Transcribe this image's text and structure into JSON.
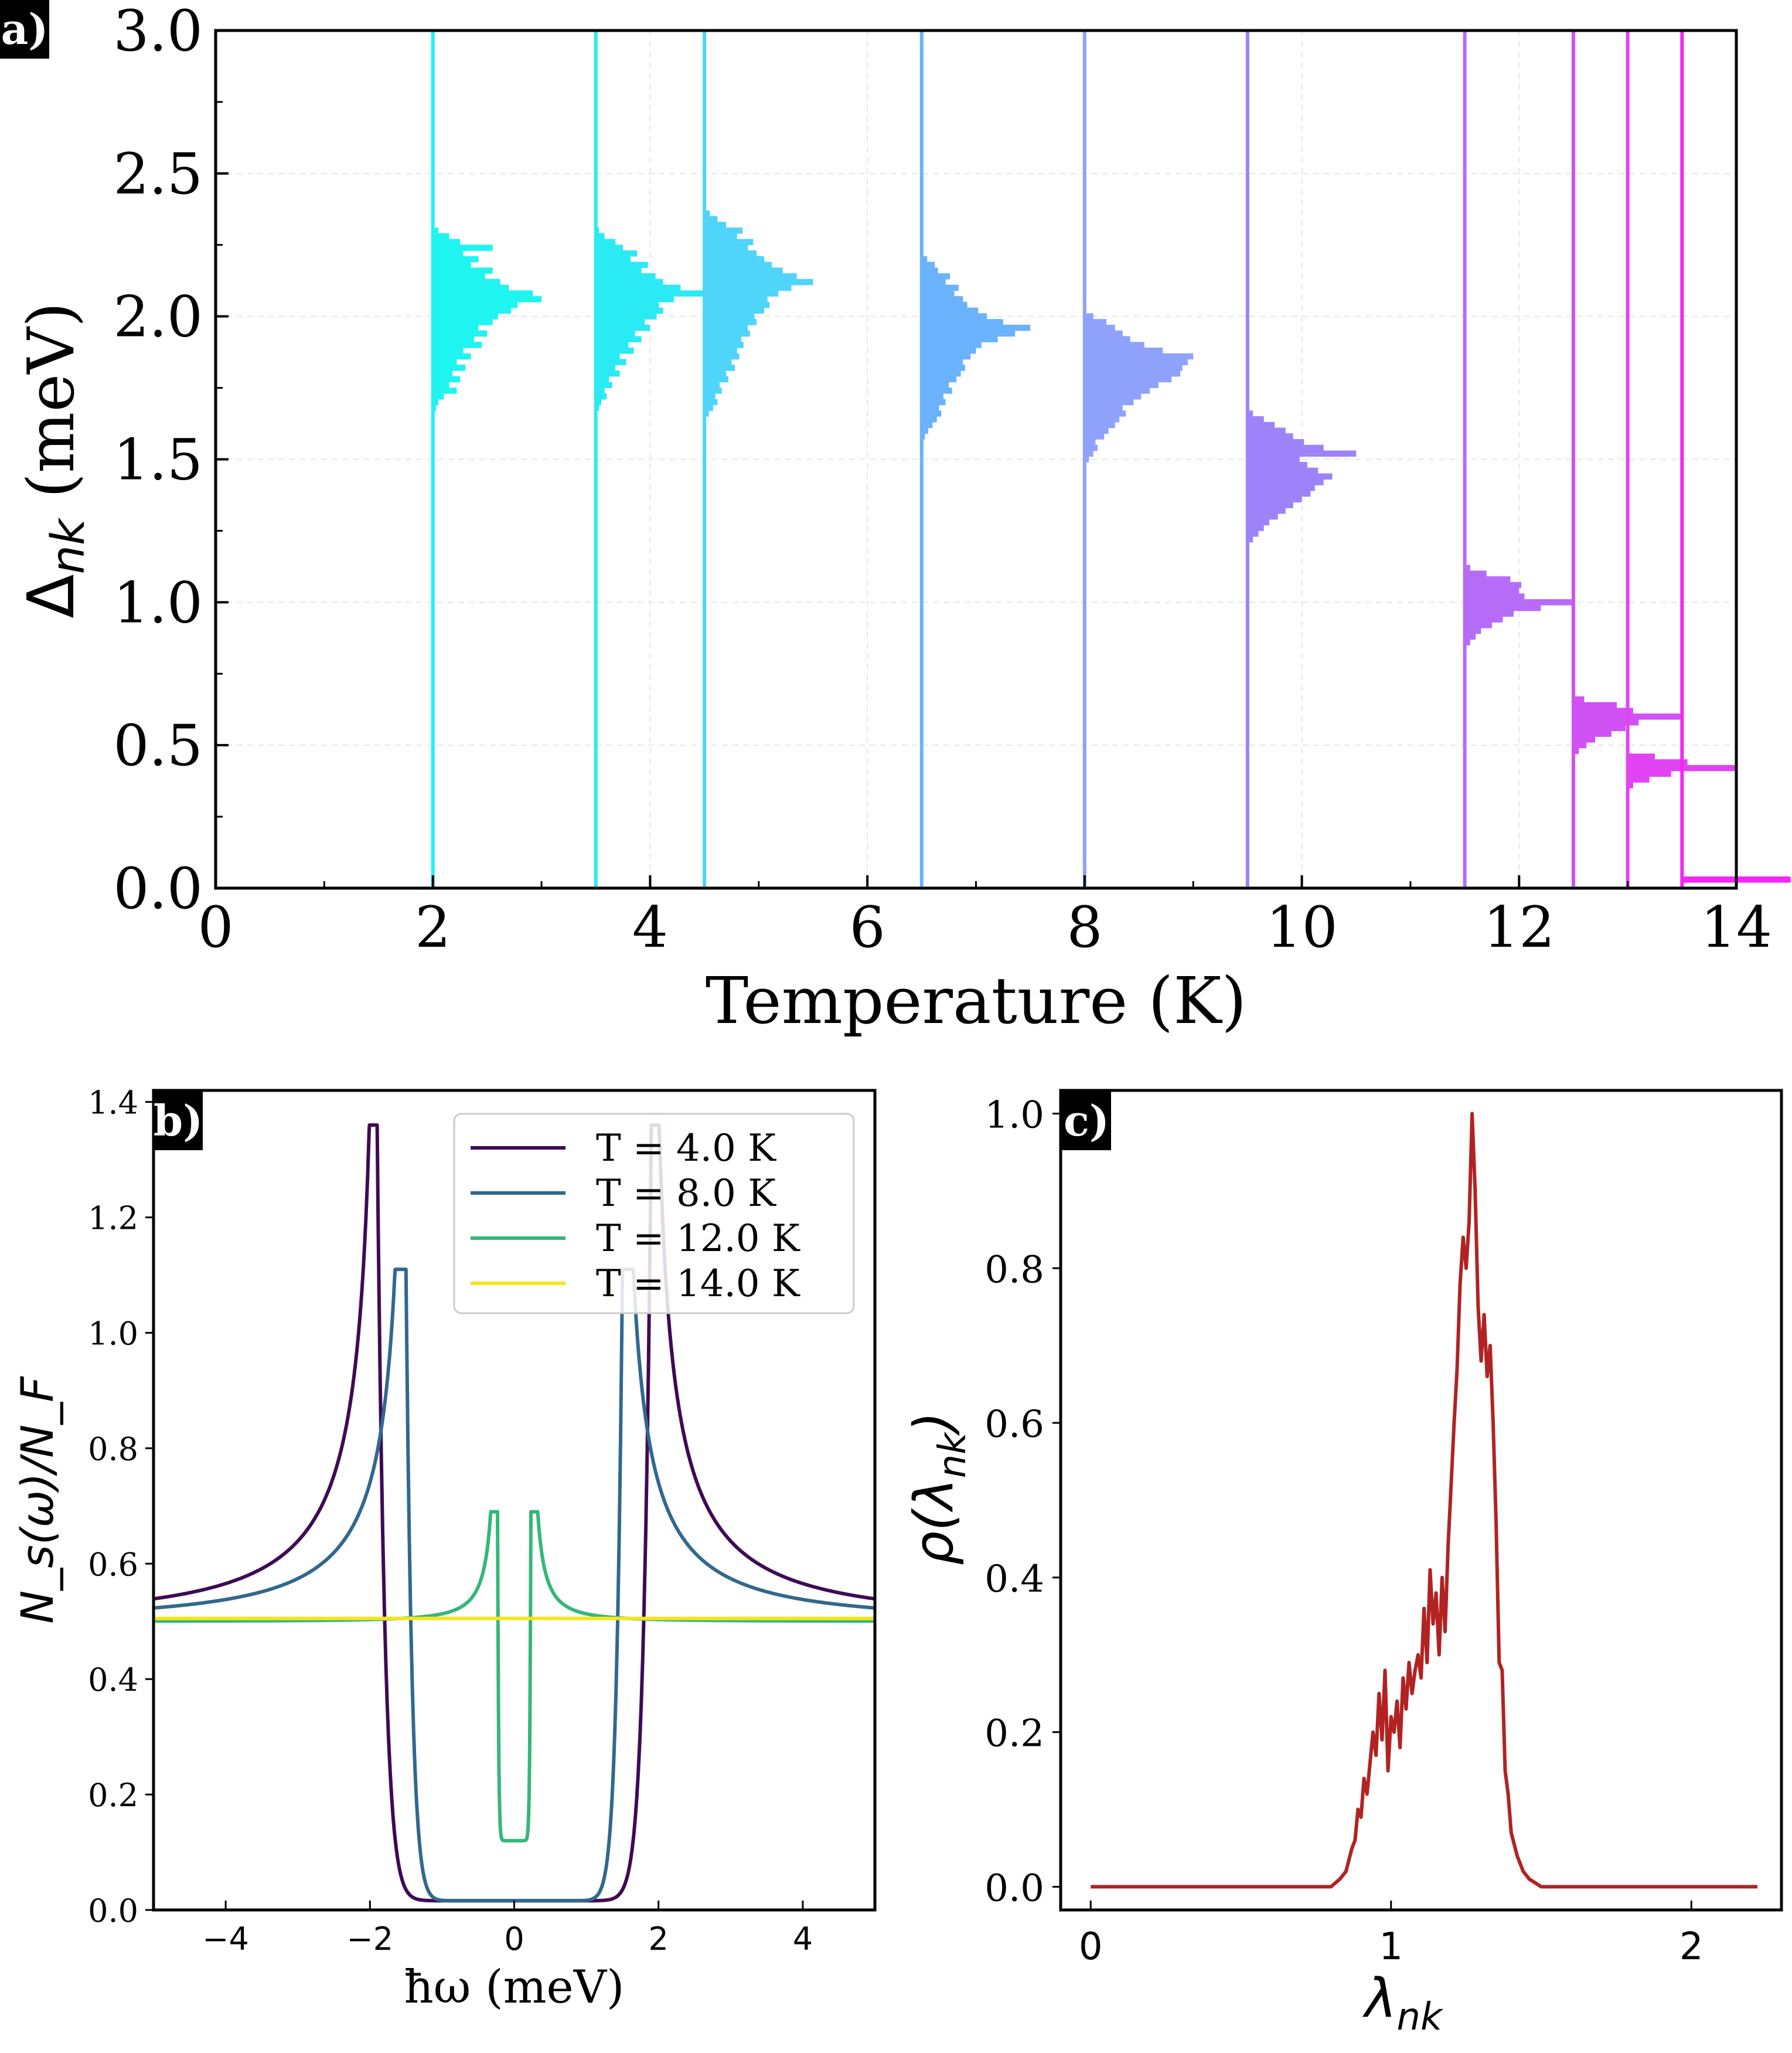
{
  "panels": [
    {
      "badge": "a)"
    },
    {
      "badge": "b)"
    },
    {
      "badge": "c)"
    }
  ],
  "chart_data": [
    {
      "type": "histogram",
      "panel": "a)",
      "xlabel": "Temperature (K)",
      "ylabel_main": "Δ",
      "ylabel_sub": "nk",
      "ylabel_unit": " (meV)",
      "xlim": [
        0,
        14
      ],
      "ylim": [
        0.0,
        3.0
      ],
      "xticks": [
        0,
        2,
        4,
        6,
        8,
        10,
        12,
        14
      ],
      "yticks": [
        0.0,
        0.5,
        1.0,
        1.5,
        2.0,
        2.5,
        3.0
      ],
      "ytick_labels": [
        "0.0",
        "0.5",
        "1.0",
        "1.5",
        "2.0",
        "2.5",
        "3.0"
      ],
      "grid": true,
      "bin_width": 0.0215,
      "series": [
        {
          "temperature": 2.0,
          "color": "#20f4f0",
          "centers": [
            1.68,
            1.7,
            1.72,
            1.74,
            1.76,
            1.78,
            1.8,
            1.82,
            1.84,
            1.86,
            1.88,
            1.9,
            1.92,
            1.94,
            1.96,
            1.98,
            2.0,
            2.02,
            2.04,
            2.06,
            2.08,
            2.1,
            2.12,
            2.14,
            2.16,
            2.18,
            2.2,
            2.22,
            2.24,
            2.26,
            2.28,
            2.3
          ],
          "heights": [
            0.03,
            0.05,
            0.1,
            0.22,
            0.15,
            0.25,
            0.18,
            0.3,
            0.22,
            0.35,
            0.28,
            0.45,
            0.38,
            0.5,
            0.42,
            0.55,
            0.6,
            0.72,
            0.78,
            1.0,
            0.92,
            0.7,
            0.62,
            0.48,
            0.55,
            0.35,
            0.42,
            0.28,
            0.55,
            0.25,
            0.15,
            0.05
          ]
        },
        {
          "temperature": 3.5,
          "color": "#2aeaf4",
          "centers": [
            1.68,
            1.7,
            1.72,
            1.74,
            1.76,
            1.78,
            1.8,
            1.82,
            1.84,
            1.86,
            1.88,
            1.9,
            1.92,
            1.94,
            1.96,
            1.98,
            2.0,
            2.02,
            2.04,
            2.06,
            2.08,
            2.1,
            2.12,
            2.14,
            2.16,
            2.18,
            2.2,
            2.22,
            2.24,
            2.26,
            2.28,
            2.3
          ],
          "heights": [
            0.03,
            0.05,
            0.1,
            0.08,
            0.15,
            0.12,
            0.22,
            0.18,
            0.28,
            0.22,
            0.35,
            0.3,
            0.42,
            0.36,
            0.5,
            0.45,
            0.56,
            0.62,
            0.58,
            0.72,
            1.0,
            0.78,
            0.62,
            0.55,
            0.42,
            0.48,
            0.32,
            0.38,
            0.25,
            0.18,
            0.08,
            0.03
          ]
        },
        {
          "temperature": 4.5,
          "color": "#4fd4fa",
          "centers": [
            1.66,
            1.68,
            1.7,
            1.72,
            1.74,
            1.76,
            1.78,
            1.8,
            1.82,
            1.84,
            1.86,
            1.88,
            1.9,
            1.92,
            1.94,
            1.96,
            1.98,
            2.0,
            2.02,
            2.04,
            2.06,
            2.08,
            2.1,
            2.12,
            2.14,
            2.16,
            2.18,
            2.2,
            2.22,
            2.24,
            2.26,
            2.28,
            2.3,
            2.32,
            2.34,
            2.36
          ],
          "heights": [
            0.04,
            0.08,
            0.12,
            0.1,
            0.16,
            0.14,
            0.22,
            0.2,
            0.28,
            0.25,
            0.32,
            0.3,
            0.36,
            0.34,
            0.42,
            0.4,
            0.48,
            0.46,
            0.55,
            0.6,
            0.58,
            0.68,
            0.8,
            1.0,
            0.85,
            0.72,
            0.62,
            0.55,
            0.48,
            0.4,
            0.45,
            0.3,
            0.35,
            0.2,
            0.12,
            0.05
          ]
        },
        {
          "temperature": 6.5,
          "color": "#6ab2fc",
          "centers": [
            1.58,
            1.6,
            1.62,
            1.64,
            1.66,
            1.68,
            1.7,
            1.72,
            1.74,
            1.76,
            1.78,
            1.8,
            1.82,
            1.84,
            1.86,
            1.88,
            1.9,
            1.92,
            1.94,
            1.96,
            1.98,
            2.0,
            2.02,
            2.04,
            2.06,
            2.08,
            2.1,
            2.12,
            2.14,
            2.16,
            2.18,
            2.2
          ],
          "heights": [
            0.03,
            0.06,
            0.1,
            0.14,
            0.18,
            0.16,
            0.22,
            0.2,
            0.28,
            0.25,
            0.32,
            0.36,
            0.4,
            0.38,
            0.45,
            0.5,
            0.55,
            0.7,
            0.86,
            1.0,
            0.75,
            0.6,
            0.52,
            0.42,
            0.38,
            0.3,
            0.34,
            0.22,
            0.26,
            0.15,
            0.12,
            0.05
          ]
        },
        {
          "temperature": 8.0,
          "color": "#8ea2fc",
          "centers": [
            1.5,
            1.52,
            1.54,
            1.56,
            1.58,
            1.6,
            1.62,
            1.64,
            1.66,
            1.68,
            1.7,
            1.72,
            1.74,
            1.76,
            1.78,
            1.8,
            1.82,
            1.84,
            1.86,
            1.88,
            1.9,
            1.92,
            1.94,
            1.96,
            1.98,
            2.0
          ],
          "heights": [
            0.04,
            0.08,
            0.12,
            0.1,
            0.18,
            0.22,
            0.28,
            0.32,
            0.38,
            0.35,
            0.45,
            0.52,
            0.6,
            0.68,
            0.8,
            0.88,
            0.9,
            0.95,
            1.0,
            0.72,
            0.55,
            0.42,
            0.35,
            0.28,
            0.2,
            0.08
          ]
        },
        {
          "temperature": 9.5,
          "color": "#9e82fa",
          "centers": [
            1.22,
            1.24,
            1.26,
            1.28,
            1.3,
            1.32,
            1.34,
            1.36,
            1.38,
            1.4,
            1.42,
            1.44,
            1.46,
            1.48,
            1.5,
            1.52,
            1.54,
            1.56,
            1.58,
            1.6,
            1.62,
            1.64,
            1.66
          ],
          "heights": [
            0.05,
            0.1,
            0.15,
            0.2,
            0.28,
            0.35,
            0.42,
            0.5,
            0.58,
            0.62,
            0.7,
            0.78,
            0.65,
            0.55,
            0.48,
            1.0,
            0.7,
            0.52,
            0.42,
            0.35,
            0.25,
            0.15,
            0.05
          ]
        },
        {
          "temperature": 11.5,
          "color": "#b76cf8",
          "centers": [
            0.86,
            0.88,
            0.9,
            0.92,
            0.94,
            0.96,
            0.98,
            1.0,
            1.02,
            1.04,
            1.06,
            1.08,
            1.1,
            1.12
          ],
          "heights": [
            0.05,
            0.1,
            0.15,
            0.25,
            0.35,
            0.45,
            0.7,
            1.0,
            0.55,
            0.5,
            0.52,
            0.42,
            0.2,
            0.05
          ]
        },
        {
          "temperature": 12.5,
          "color": "#d051f4",
          "centers": [
            0.48,
            0.5,
            0.52,
            0.54,
            0.56,
            0.58,
            0.6,
            0.62,
            0.64,
            0.66
          ],
          "heights": [
            0.05,
            0.12,
            0.2,
            0.35,
            0.48,
            0.6,
            1.0,
            0.55,
            0.4,
            0.1
          ]
        },
        {
          "temperature": 13.0,
          "color": "#e243f2",
          "centers": [
            0.36,
            0.38,
            0.4,
            0.42,
            0.44,
            0.46
          ],
          "heights": [
            0.05,
            0.2,
            0.4,
            1.0,
            0.55,
            0.25
          ]
        },
        {
          "temperature": 13.5,
          "color": "#f426f6",
          "centers": [
            0.03
          ],
          "heights": [
            1.0
          ]
        }
      ]
    },
    {
      "type": "line",
      "panel": "b)",
      "xlabel": "ħω (meV)",
      "ylabel": "N_s(ω)/N_F",
      "xlim": [
        -5,
        5
      ],
      "ylim": [
        0.0,
        1.42
      ],
      "xticks": [
        -4,
        -2,
        0,
        2,
        4
      ],
      "xtick_labels": [
        "−4",
        "−2",
        "0",
        "2",
        "4"
      ],
      "yticks": [
        0.0,
        0.2,
        0.4,
        0.6,
        0.8,
        1.0,
        1.2,
        1.4
      ],
      "ytick_labels": [
        "0.0",
        "0.2",
        "0.4",
        "0.6",
        "0.8",
        "1.0",
        "1.2",
        "1.4"
      ],
      "legend_position": "top-right",
      "series": [
        {
          "name": "T = 4.0 K",
          "color": "#3f0a55",
          "gap": 1.9,
          "peak": 1.36,
          "min": 0.016
        },
        {
          "name": "T = 8.0 K",
          "color": "#31688e",
          "gap": 1.5,
          "peak": 1.11,
          "min": 0.016
        },
        {
          "name": "T = 12.0 K",
          "color": "#35b779",
          "gap": 0.23,
          "peak": 0.69,
          "min": 0.12
        },
        {
          "name": "T = 14.0 K",
          "color": "#f6e51e",
          "gap": 0,
          "peak": 0.505,
          "min": 0.505
        }
      ]
    },
    {
      "type": "line",
      "panel": "c)",
      "xlabel_main": "λ",
      "xlabel_sub": "nk",
      "ylabel_main": "ρ(λ",
      "ylabel_sub": "nk",
      "ylabel_end": ")",
      "xlim": [
        -0.1,
        2.3
      ],
      "ylim": [
        -0.03,
        1.03
      ],
      "xticks": [
        0,
        1,
        2
      ],
      "yticks": [
        0.0,
        0.2,
        0.4,
        0.6,
        0.8,
        1.0
      ],
      "ytick_labels": [
        "0.0",
        "0.2",
        "0.4",
        "0.6",
        "0.8",
        "1.0"
      ],
      "color": "#b22222",
      "x": [
        0.0,
        0.8,
        0.83,
        0.85,
        0.87,
        0.88,
        0.89,
        0.9,
        0.91,
        0.92,
        0.93,
        0.94,
        0.95,
        0.96,
        0.97,
        0.98,
        0.99,
        1.0,
        1.01,
        1.02,
        1.03,
        1.04,
        1.05,
        1.06,
        1.07,
        1.08,
        1.09,
        1.1,
        1.11,
        1.12,
        1.13,
        1.14,
        1.15,
        1.16,
        1.17,
        1.18,
        1.19,
        1.2,
        1.21,
        1.22,
        1.23,
        1.24,
        1.25,
        1.26,
        1.27,
        1.28,
        1.29,
        1.3,
        1.31,
        1.32,
        1.33,
        1.34,
        1.35,
        1.36,
        1.37,
        1.38,
        1.39,
        1.4,
        1.42,
        1.44,
        1.46,
        1.48,
        1.5,
        1.55,
        1.6,
        2.22
      ],
      "y": [
        0.0,
        0.0,
        0.01,
        0.02,
        0.05,
        0.06,
        0.1,
        0.09,
        0.14,
        0.12,
        0.16,
        0.2,
        0.17,
        0.25,
        0.19,
        0.28,
        0.15,
        0.22,
        0.2,
        0.24,
        0.18,
        0.27,
        0.23,
        0.29,
        0.25,
        0.28,
        0.3,
        0.27,
        0.36,
        0.29,
        0.41,
        0.34,
        0.38,
        0.3,
        0.4,
        0.33,
        0.44,
        0.52,
        0.6,
        0.67,
        0.78,
        0.84,
        0.8,
        0.86,
        1.0,
        0.9,
        0.75,
        0.68,
        0.74,
        0.66,
        0.7,
        0.6,
        0.47,
        0.29,
        0.28,
        0.15,
        0.12,
        0.07,
        0.04,
        0.02,
        0.01,
        0.005,
        0.0,
        0.0,
        0.0,
        0.0
      ]
    }
  ]
}
